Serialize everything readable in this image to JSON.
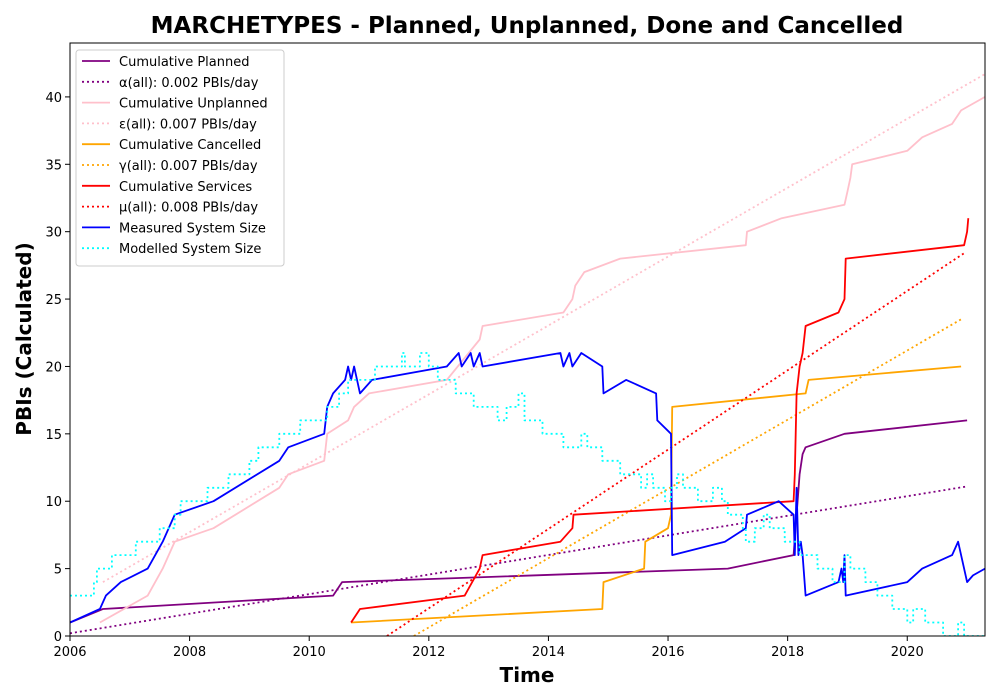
{
  "chart_data": {
    "type": "line",
    "title": "MARCHETYPES - Planned, Unplanned, Done  and Cancelled",
    "xlabel": "Time",
    "ylabel": "PBIs (Calculated)",
    "xlim": [
      2006.0,
      2021.3
    ],
    "ylim": [
      0,
      44
    ],
    "x_ticks": [
      2006,
      2008,
      2010,
      2012,
      2014,
      2016,
      2018,
      2020
    ],
    "y_ticks": [
      0,
      5,
      10,
      15,
      20,
      25,
      30,
      35,
      40
    ],
    "grid": false,
    "legend_placement": "top-left",
    "series": [
      {
        "name": "Cumulative Planned",
        "color": "#800080",
        "style": "solid",
        "points": [
          [
            2006.0,
            1
          ],
          [
            2006.55,
            2
          ],
          [
            2010.4,
            3
          ],
          [
            2010.55,
            4
          ],
          [
            2017.0,
            5
          ],
          [
            2018.1,
            6
          ],
          [
            2018.2,
            12
          ],
          [
            2018.25,
            13.5
          ],
          [
            2018.3,
            14
          ],
          [
            2018.95,
            15
          ],
          [
            2021.0,
            16
          ]
        ]
      },
      {
        "name": "α(all): 0.002 PBIs/day",
        "color": "#800080",
        "style": "dotted",
        "points": [
          [
            2006.0,
            0.2
          ],
          [
            2021.0,
            11.1
          ]
        ]
      },
      {
        "name": "Cumulative Unplanned",
        "color": "#ffc0cb",
        "style": "solid",
        "points": [
          [
            2006.5,
            1
          ],
          [
            2007.3,
            3
          ],
          [
            2007.55,
            5
          ],
          [
            2007.75,
            7
          ],
          [
            2008.4,
            8
          ],
          [
            2009.5,
            11
          ],
          [
            2009.65,
            12
          ],
          [
            2010.25,
            13
          ],
          [
            2010.3,
            15
          ],
          [
            2010.65,
            16
          ],
          [
            2010.75,
            17
          ],
          [
            2011.0,
            18
          ],
          [
            2012.3,
            19
          ],
          [
            2012.85,
            22
          ],
          [
            2012.9,
            23
          ],
          [
            2014.25,
            24
          ],
          [
            2014.4,
            25
          ],
          [
            2014.45,
            26
          ],
          [
            2014.6,
            27
          ],
          [
            2015.2,
            28
          ],
          [
            2017.3,
            29
          ],
          [
            2017.32,
            30
          ],
          [
            2017.9,
            31
          ],
          [
            2018.95,
            32
          ],
          [
            2019.0,
            33
          ],
          [
            2019.05,
            34
          ],
          [
            2019.08,
            35
          ],
          [
            2020.0,
            36
          ],
          [
            2020.25,
            37
          ],
          [
            2020.75,
            38
          ],
          [
            2020.9,
            39
          ],
          [
            2021.3,
            40
          ]
        ]
      },
      {
        "name": "ε(all): 0.007 PBIs/day",
        "color": "#ffc0cb",
        "style": "dotted",
        "points": [
          [
            2006.55,
            4.0
          ],
          [
            2021.3,
            41.7
          ]
        ]
      },
      {
        "name": "Cumulative Cancelled",
        "color": "#ffa500",
        "style": "solid",
        "points": [
          [
            2010.7,
            1
          ],
          [
            2014.9,
            2
          ],
          [
            2014.92,
            4
          ],
          [
            2015.6,
            5
          ],
          [
            2015.62,
            7
          ],
          [
            2016.0,
            8
          ],
          [
            2016.05,
            9
          ],
          [
            2016.07,
            17
          ],
          [
            2018.3,
            18
          ],
          [
            2018.35,
            19
          ],
          [
            2020.9,
            20
          ]
        ]
      },
      {
        "name": "γ(all): 0.007 PBIs/day",
        "color": "#ffa500",
        "style": "dotted",
        "points": [
          [
            2011.75,
            0
          ],
          [
            2020.9,
            23.5
          ]
        ]
      },
      {
        "name": "Cumulative Services",
        "color": "#ff0000",
        "style": "solid",
        "points": [
          [
            2010.7,
            1
          ],
          [
            2010.85,
            2
          ],
          [
            2012.6,
            3
          ],
          [
            2012.85,
            5
          ],
          [
            2012.9,
            6
          ],
          [
            2014.2,
            7
          ],
          [
            2014.4,
            8
          ],
          [
            2014.42,
            9
          ],
          [
            2018.1,
            10
          ],
          [
            2018.12,
            12
          ],
          [
            2018.15,
            18
          ],
          [
            2018.2,
            20
          ],
          [
            2018.25,
            21
          ],
          [
            2018.3,
            23
          ],
          [
            2018.85,
            24
          ],
          [
            2018.95,
            25
          ],
          [
            2018.97,
            28
          ],
          [
            2020.95,
            29
          ],
          [
            2021.0,
            30
          ],
          [
            2021.02,
            31
          ]
        ]
      },
      {
        "name": "μ(all): 0.008 PBIs/day",
        "color": "#ff0000",
        "style": "dotted",
        "points": [
          [
            2011.3,
            0
          ],
          [
            2020.95,
            28.4
          ]
        ]
      },
      {
        "name": "Measured System Size",
        "color": "#0000ff",
        "style": "solid",
        "points": [
          [
            2006.0,
            1
          ],
          [
            2006.5,
            2
          ],
          [
            2006.6,
            3
          ],
          [
            2006.85,
            4
          ],
          [
            2007.3,
            5
          ],
          [
            2007.55,
            7
          ],
          [
            2007.75,
            9
          ],
          [
            2008.4,
            10
          ],
          [
            2009.5,
            13
          ],
          [
            2009.65,
            14
          ],
          [
            2010.25,
            15
          ],
          [
            2010.3,
            17
          ],
          [
            2010.4,
            18
          ],
          [
            2010.6,
            19
          ],
          [
            2010.65,
            20
          ],
          [
            2010.7,
            19
          ],
          [
            2010.75,
            20
          ],
          [
            2010.85,
            18
          ],
          [
            2011.05,
            19
          ],
          [
            2012.3,
            20
          ],
          [
            2012.5,
            21
          ],
          [
            2012.55,
            20
          ],
          [
            2012.7,
            21
          ],
          [
            2012.75,
            20
          ],
          [
            2012.85,
            21
          ],
          [
            2012.9,
            20
          ],
          [
            2014.2,
            21
          ],
          [
            2014.25,
            20
          ],
          [
            2014.35,
            21
          ],
          [
            2014.4,
            20
          ],
          [
            2014.55,
            21
          ],
          [
            2014.9,
            20
          ],
          [
            2014.92,
            18
          ],
          [
            2015.3,
            19
          ],
          [
            2015.8,
            18
          ],
          [
            2015.82,
            16
          ],
          [
            2016.05,
            15
          ],
          [
            2016.07,
            6
          ],
          [
            2016.95,
            7
          ],
          [
            2017.3,
            8
          ],
          [
            2017.32,
            9
          ],
          [
            2017.85,
            10
          ],
          [
            2018.1,
            9
          ],
          [
            2018.12,
            6
          ],
          [
            2018.15,
            11
          ],
          [
            2018.18,
            6
          ],
          [
            2018.22,
            7
          ],
          [
            2018.25,
            6
          ],
          [
            2018.3,
            3
          ],
          [
            2018.85,
            4
          ],
          [
            2018.9,
            5
          ],
          [
            2018.93,
            4
          ],
          [
            2018.95,
            6
          ],
          [
            2018.97,
            3
          ],
          [
            2020.0,
            4
          ],
          [
            2020.25,
            5
          ],
          [
            2020.75,
            6
          ],
          [
            2020.85,
            7
          ],
          [
            2020.95,
            5
          ],
          [
            2021.0,
            4
          ],
          [
            2021.1,
            4.5
          ],
          [
            2021.3,
            5
          ]
        ]
      },
      {
        "name": "Modelled System Size",
        "color": "#00ffff",
        "style": "dotted",
        "points": [
          [
            2006.0,
            3
          ],
          [
            2006.4,
            3
          ],
          [
            2006.4,
            4
          ],
          [
            2006.45,
            4
          ],
          [
            2006.45,
            5
          ],
          [
            2006.7,
            5
          ],
          [
            2006.7,
            6
          ],
          [
            2007.1,
            6
          ],
          [
            2007.1,
            7
          ],
          [
            2007.5,
            7
          ],
          [
            2007.5,
            8
          ],
          [
            2007.75,
            8
          ],
          [
            2007.75,
            9
          ],
          [
            2007.85,
            9
          ],
          [
            2007.85,
            10
          ],
          [
            2008.3,
            10
          ],
          [
            2008.3,
            11
          ],
          [
            2008.65,
            11
          ],
          [
            2008.65,
            12
          ],
          [
            2009.0,
            12
          ],
          [
            2009.0,
            13
          ],
          [
            2009.15,
            13
          ],
          [
            2009.15,
            14
          ],
          [
            2009.5,
            14
          ],
          [
            2009.5,
            15
          ],
          [
            2009.85,
            15
          ],
          [
            2009.85,
            16
          ],
          [
            2010.3,
            16
          ],
          [
            2010.3,
            17
          ],
          [
            2010.5,
            17
          ],
          [
            2010.5,
            18
          ],
          [
            2010.65,
            18
          ],
          [
            2010.65,
            19
          ],
          [
            2011.1,
            19
          ],
          [
            2011.1,
            20
          ],
          [
            2011.55,
            20
          ],
          [
            2011.55,
            21
          ],
          [
            2011.6,
            21
          ],
          [
            2011.6,
            20
          ],
          [
            2011.85,
            20
          ],
          [
            2011.85,
            21
          ],
          [
            2012.0,
            21
          ],
          [
            2012.0,
            20
          ],
          [
            2012.15,
            20
          ],
          [
            2012.15,
            19
          ],
          [
            2012.45,
            19
          ],
          [
            2012.45,
            18
          ],
          [
            2012.75,
            18
          ],
          [
            2012.75,
            17
          ],
          [
            2013.15,
            17
          ],
          [
            2013.15,
            16
          ],
          [
            2013.3,
            16
          ],
          [
            2013.3,
            17
          ],
          [
            2013.5,
            17
          ],
          [
            2013.5,
            18
          ],
          [
            2013.6,
            18
          ],
          [
            2013.6,
            16
          ],
          [
            2013.9,
            16
          ],
          [
            2013.9,
            15
          ],
          [
            2014.25,
            15
          ],
          [
            2014.25,
            14
          ],
          [
            2014.55,
            14
          ],
          [
            2014.55,
            15
          ],
          [
            2014.65,
            15
          ],
          [
            2014.65,
            14
          ],
          [
            2014.9,
            14
          ],
          [
            2014.9,
            13
          ],
          [
            2015.2,
            13
          ],
          [
            2015.2,
            12
          ],
          [
            2015.55,
            12
          ],
          [
            2015.55,
            11
          ],
          [
            2015.65,
            11
          ],
          [
            2015.65,
            12
          ],
          [
            2015.75,
            12
          ],
          [
            2015.75,
            11
          ],
          [
            2015.95,
            11
          ],
          [
            2015.95,
            10
          ],
          [
            2016.05,
            10
          ],
          [
            2016.05,
            11
          ],
          [
            2016.15,
            11
          ],
          [
            2016.15,
            12
          ],
          [
            2016.25,
            12
          ],
          [
            2016.25,
            11
          ],
          [
            2016.5,
            11
          ],
          [
            2016.5,
            10
          ],
          [
            2016.75,
            10
          ],
          [
            2016.75,
            11
          ],
          [
            2016.9,
            11
          ],
          [
            2016.9,
            10
          ],
          [
            2017.0,
            10
          ],
          [
            2017.0,
            9
          ],
          [
            2017.25,
            9
          ],
          [
            2017.25,
            8
          ],
          [
            2017.3,
            8
          ],
          [
            2017.3,
            7
          ],
          [
            2017.45,
            7
          ],
          [
            2017.45,
            8
          ],
          [
            2017.6,
            8
          ],
          [
            2017.6,
            9
          ],
          [
            2017.7,
            9
          ],
          [
            2017.7,
            8
          ],
          [
            2017.95,
            8
          ],
          [
            2017.95,
            7
          ],
          [
            2018.2,
            7
          ],
          [
            2018.2,
            6
          ],
          [
            2018.5,
            6
          ],
          [
            2018.5,
            5
          ],
          [
            2018.75,
            5
          ],
          [
            2018.75,
            4
          ],
          [
            2018.95,
            4
          ],
          [
            2018.95,
            6
          ],
          [
            2019.05,
            6
          ],
          [
            2019.05,
            5
          ],
          [
            2019.3,
            5
          ],
          [
            2019.3,
            4
          ],
          [
            2019.5,
            4
          ],
          [
            2019.5,
            3
          ],
          [
            2019.75,
            3
          ],
          [
            2019.75,
            2
          ],
          [
            2020.0,
            2
          ],
          [
            2020.0,
            1
          ],
          [
            2020.1,
            1
          ],
          [
            2020.1,
            2
          ],
          [
            2020.3,
            2
          ],
          [
            2020.3,
            1
          ],
          [
            2020.6,
            1
          ],
          [
            2020.6,
            0
          ],
          [
            2020.85,
            0
          ],
          [
            2020.85,
            1
          ],
          [
            2020.95,
            1
          ],
          [
            2020.95,
            0
          ],
          [
            2021.3,
            0
          ]
        ]
      }
    ]
  }
}
